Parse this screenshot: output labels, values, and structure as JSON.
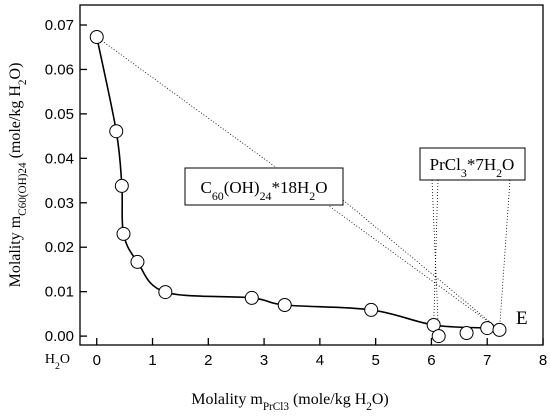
{
  "chart_data": {
    "type": "scatter",
    "xlabel": [
      "Molality  m",
      "PrCl3",
      " (mole/kg H",
      "2",
      "O)"
    ],
    "ylabel": [
      "Molality  m",
      "C60(OH)24",
      " (mole/kg H",
      "2",
      "O)"
    ],
    "x_origin_label": [
      "H",
      "2",
      "O"
    ],
    "annotations": {
      "c60": [
        "C",
        "60",
        "(OH)",
        "24",
        "*18H",
        "2",
        "O"
      ],
      "prcl3": [
        "PrCl",
        "3",
        "*7H",
        "2",
        "O"
      ],
      "eutonic": "E"
    },
    "xlim": [
      -0.3,
      8
    ],
    "ylim": [
      -0.002,
      0.0745
    ],
    "xticks": [
      0,
      1,
      2,
      3,
      4,
      5,
      6,
      7,
      8
    ],
    "yticks": [
      {
        "value": 0,
        "label": "0.00"
      },
      0.01,
      0.02,
      0.03,
      0.04,
      0.05,
      0.06,
      0.07
    ],
    "series": [
      {
        "color": "#000000",
        "line": true,
        "x": [
          0,
          0.35,
          0.45,
          0.48,
          0.73,
          1.23,
          2.78,
          3.37,
          4.92,
          6.04,
          7.0,
          7.22
        ],
        "values": [
          0.0673,
          0.0461,
          0.0338,
          0.023,
          0.0167,
          0.0099,
          0.0086,
          0.007,
          0.0059,
          0.0025,
          0.0018,
          0.0014
        ]
      },
      {
        "color": "#000000",
        "line": false,
        "x": [
          6.13,
          6.63
        ],
        "values": [
          0.0,
          0.0007
        ]
      }
    ]
  }
}
